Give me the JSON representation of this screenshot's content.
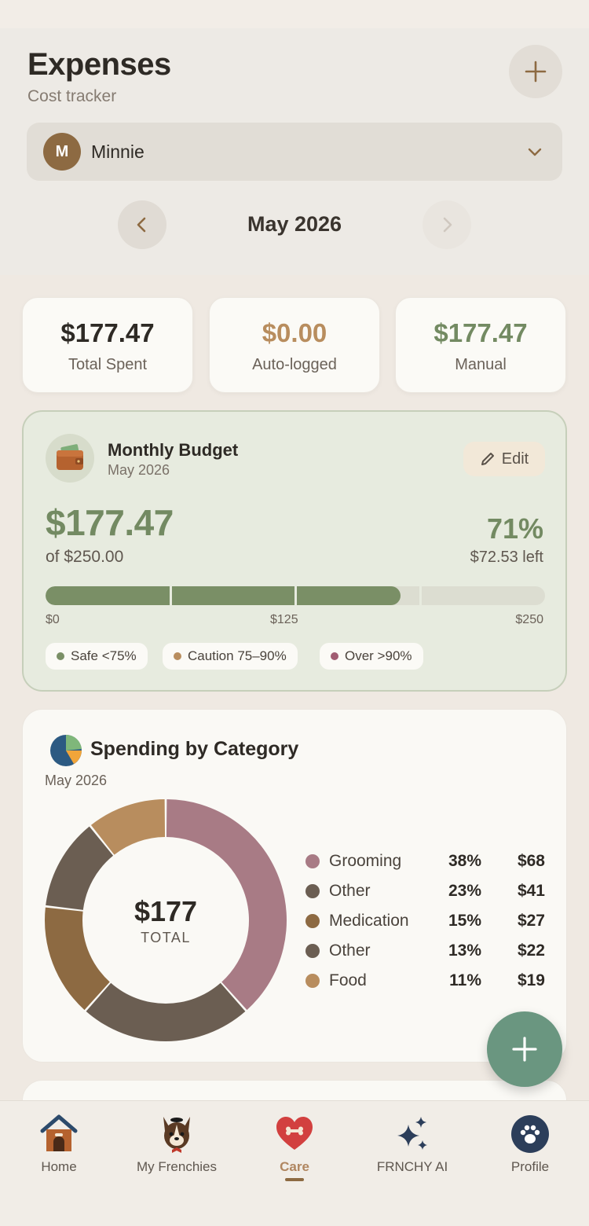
{
  "header": {
    "title": "Expenses",
    "subtitle": "Cost tracker",
    "pet": {
      "initial": "M",
      "name": "Minnie"
    },
    "month": "May 2026"
  },
  "stats": [
    {
      "value": "$177.47",
      "label": "Total Spent",
      "color": "#2e2a25"
    },
    {
      "value": "$0.00",
      "label": "Auto-logged",
      "color": "#b88d5e"
    },
    {
      "value": "$177.47",
      "label": "Manual",
      "color": "#738a62"
    }
  ],
  "budget": {
    "title": "Monthly Budget",
    "subtitle": "May 2026",
    "edit_label": "Edit",
    "spent": "$177.47",
    "of_total": "of $250.00",
    "percent_label": "71%",
    "left": "$72.53 left",
    "progress": 0.71,
    "scale_min": "$0",
    "scale_mid": "$125",
    "scale_max": "$250",
    "chips": [
      {
        "label": "Safe <75%",
        "color": "#7a8f66"
      },
      {
        "label": "Caution 75–90%",
        "color": "#b88d5e"
      },
      {
        "label": "Over >90%",
        "color": "#a05c72"
      }
    ]
  },
  "category": {
    "title": "Spending by Category",
    "subtitle": "May 2026",
    "total": "$177",
    "total_label": "TOTAL"
  },
  "chart_data": {
    "type": "pie",
    "categories": [
      "Grooming",
      "Other",
      "Medication",
      "Other",
      "Food"
    ],
    "percent_labels": [
      "38%",
      "23%",
      "15%",
      "13%",
      "11%"
    ],
    "amount_labels": [
      "$68",
      "$41",
      "$27",
      "$22",
      "$19"
    ],
    "values": [
      68,
      41,
      27,
      22,
      19
    ],
    "colors": [
      "#a87b85",
      "#6b5e52",
      "#8d6a42",
      "#6b5e52",
      "#b88d5e"
    ],
    "total": "$177"
  },
  "tabs": [
    {
      "label": "Home",
      "icon": "doghouse-icon",
      "active": false
    },
    {
      "label": "My Frenchies",
      "icon": "frenchie-icon",
      "active": false
    },
    {
      "label": "Care",
      "icon": "heart-bone-icon",
      "active": true
    },
    {
      "label": "FRNCHY AI",
      "icon": "sparkles-icon",
      "active": false
    },
    {
      "label": "Profile",
      "icon": "paw-icon",
      "active": false
    }
  ]
}
